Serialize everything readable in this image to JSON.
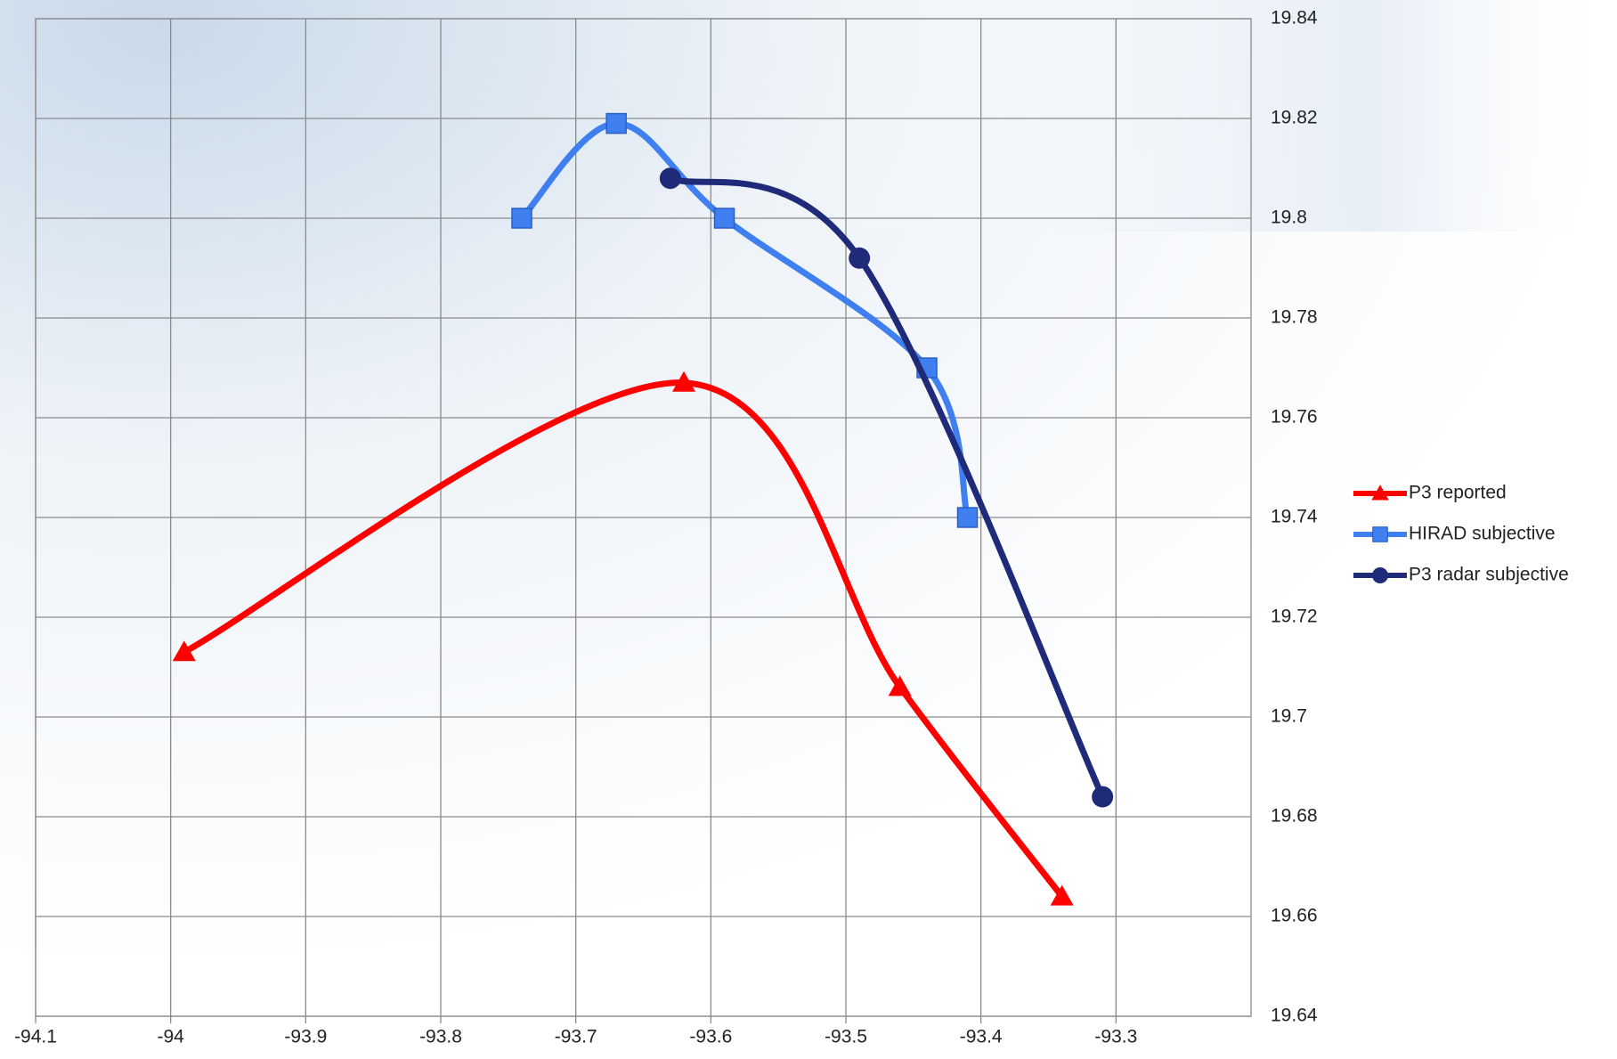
{
  "chart_data": {
    "type": "scatter",
    "smooth": true,
    "grid": true,
    "legend": "right",
    "xlim": [
      -94.1,
      -93.2
    ],
    "xticks": [
      -94.1,
      -94,
      -93.9,
      -93.8,
      -93.7,
      -93.6,
      -93.5,
      -93.4,
      -93.3
    ],
    "ylim": [
      19.64,
      19.84
    ],
    "yticks": [
      19.64,
      19.66,
      19.68,
      19.7,
      19.72,
      19.74,
      19.76,
      19.78,
      19.8,
      19.82,
      19.84
    ],
    "y_axis_side": "right",
    "series": [
      {
        "name": "P3 reported",
        "color": "#ff0000",
        "marker": "triangle",
        "x": [
          -93.99,
          -93.62,
          -93.46,
          -93.34
        ],
        "values": [
          19.713,
          19.767,
          19.706,
          19.664
        ]
      },
      {
        "name": "HIRAD subjective",
        "color": "#3f7ff0",
        "marker": "square",
        "x": [
          -93.74,
          -93.67,
          -93.59,
          -93.44,
          -93.41
        ],
        "values": [
          19.8,
          19.819,
          19.8,
          19.77,
          19.74
        ]
      },
      {
        "name": "P3 radar subjective",
        "color": "#1f2a78",
        "marker": "circle",
        "x": [
          -93.63,
          -93.49,
          -93.31
        ],
        "values": [
          19.808,
          19.792,
          19.684
        ]
      }
    ]
  }
}
